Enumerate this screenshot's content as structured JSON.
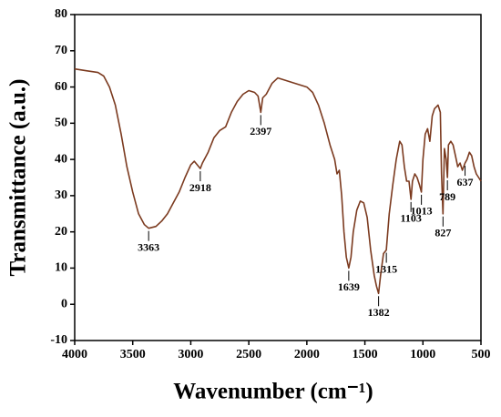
{
  "chart_data": {
    "type": "line",
    "x_label": "Wavenumber (cm⁻¹)",
    "y_label": "Transmittance (a.u.)",
    "xlim": [
      4000,
      500
    ],
    "xticks": [
      4000,
      3500,
      3000,
      2500,
      2000,
      1500,
      1000,
      500
    ],
    "ylim": [
      -10,
      80
    ],
    "yticks": [
      -10,
      0,
      10,
      20,
      30,
      40,
      50,
      60,
      70,
      80
    ],
    "series": [
      {
        "color": "#7b3a1f",
        "x": [
          4000,
          3900,
          3800,
          3750,
          3700,
          3650,
          3600,
          3550,
          3500,
          3450,
          3400,
          3363,
          3300,
          3250,
          3200,
          3150,
          3100,
          3050,
          3000,
          2970,
          2918,
          2900,
          2850,
          2800,
          2750,
          2700,
          2650,
          2600,
          2550,
          2500,
          2450,
          2420,
          2397,
          2380,
          2350,
          2300,
          2250,
          2200,
          2100,
          2000,
          1950,
          1900,
          1850,
          1800,
          1760,
          1740,
          1720,
          1700,
          1680,
          1660,
          1639,
          1620,
          1600,
          1570,
          1540,
          1510,
          1480,
          1450,
          1420,
          1400,
          1382,
          1365,
          1340,
          1315,
          1290,
          1260,
          1230,
          1200,
          1180,
          1160,
          1140,
          1120,
          1103,
          1090,
          1070,
          1050,
          1030,
          1013,
          1000,
          980,
          960,
          940,
          920,
          900,
          870,
          850,
          840,
          827,
          815,
          800,
          789,
          780,
          760,
          740,
          720,
          700,
          680,
          660,
          637,
          620,
          600,
          580,
          560,
          540,
          520,
          500
        ],
        "values": [
          65,
          64.5,
          64,
          63,
          60,
          55,
          47,
          38,
          31,
          25,
          22,
          21,
          21.5,
          23,
          25,
          28,
          31,
          35,
          38.5,
          39.5,
          37.5,
          39,
          42,
          46,
          48,
          49,
          53,
          56,
          58,
          59,
          58.5,
          57.5,
          53,
          57,
          58,
          61,
          62.5,
          62,
          61,
          60,
          58.5,
          55,
          50,
          44,
          40,
          36,
          37,
          30,
          20,
          13,
          10,
          13,
          20,
          26,
          28.5,
          28,
          24,
          15,
          8,
          5,
          3,
          8,
          14,
          15,
          25,
          33,
          40,
          45,
          44,
          38,
          34,
          34,
          29,
          34,
          36,
          35,
          33,
          31,
          40,
          47,
          48.5,
          45,
          52,
          54,
          55,
          53,
          36,
          25,
          43,
          40,
          35,
          44,
          45,
          44,
          41,
          38,
          39,
          37,
          39,
          40,
          42,
          41,
          38,
          36,
          35,
          34
        ]
      }
    ],
    "annotations": [
      {
        "x": 3363,
        "y": 21
      },
      {
        "x": 2918,
        "y": 37.5
      },
      {
        "x": 2397,
        "y": 53
      },
      {
        "x": 1639,
        "y": 10
      },
      {
        "x": 1382,
        "y": 3
      },
      {
        "x": 1315,
        "y": 15
      },
      {
        "x": 1103,
        "y": 29
      },
      {
        "x": 1013,
        "y": 31
      },
      {
        "x": 827,
        "y": 25
      },
      {
        "x": 789,
        "y": 35
      },
      {
        "x": 637,
        "y": 39
      }
    ]
  }
}
